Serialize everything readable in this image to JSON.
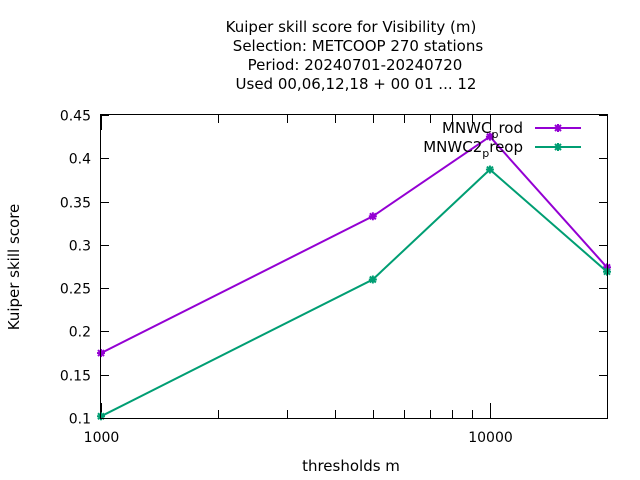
{
  "chart_data": {
    "type": "line",
    "title_lines": [
      "Kuiper skill score  for Visibility (m)",
      "Selection: METCOOP    270 stations",
      "Period: 20240701-20240720",
      "Used  00,06,12,18 + 00 01 ... 12"
    ],
    "xlabel": "thresholds m",
    "ylabel": "Kuiper skill score",
    "x_scale": "log",
    "xlim": [
      1000,
      20000
    ],
    "ylim": [
      0.1,
      0.45
    ],
    "x_tick_labels": [
      "1000",
      "10000"
    ],
    "y_tick_labels": [
      "0.1",
      "0.15",
      "0.2",
      "0.25",
      "0.3",
      "0.35",
      "0.4",
      "0.45"
    ],
    "legend_position": "top-right",
    "series": [
      {
        "name": "MNWC_prod",
        "legend_main": "MNWC",
        "legend_sub": "p",
        "legend_tail": "rod",
        "color": "#9400d3",
        "x": [
          1000,
          5000,
          10000,
          20000
        ],
        "y": [
          0.175,
          0.333,
          0.425,
          0.274
        ]
      },
      {
        "name": "MNWC2_preop",
        "legend_main": "MNWC2",
        "legend_sub": "p",
        "legend_tail": "reop",
        "color": "#009e73",
        "x": [
          1000,
          5000,
          10000,
          20000
        ],
        "y": [
          0.102,
          0.26,
          0.387,
          0.269
        ]
      }
    ]
  }
}
